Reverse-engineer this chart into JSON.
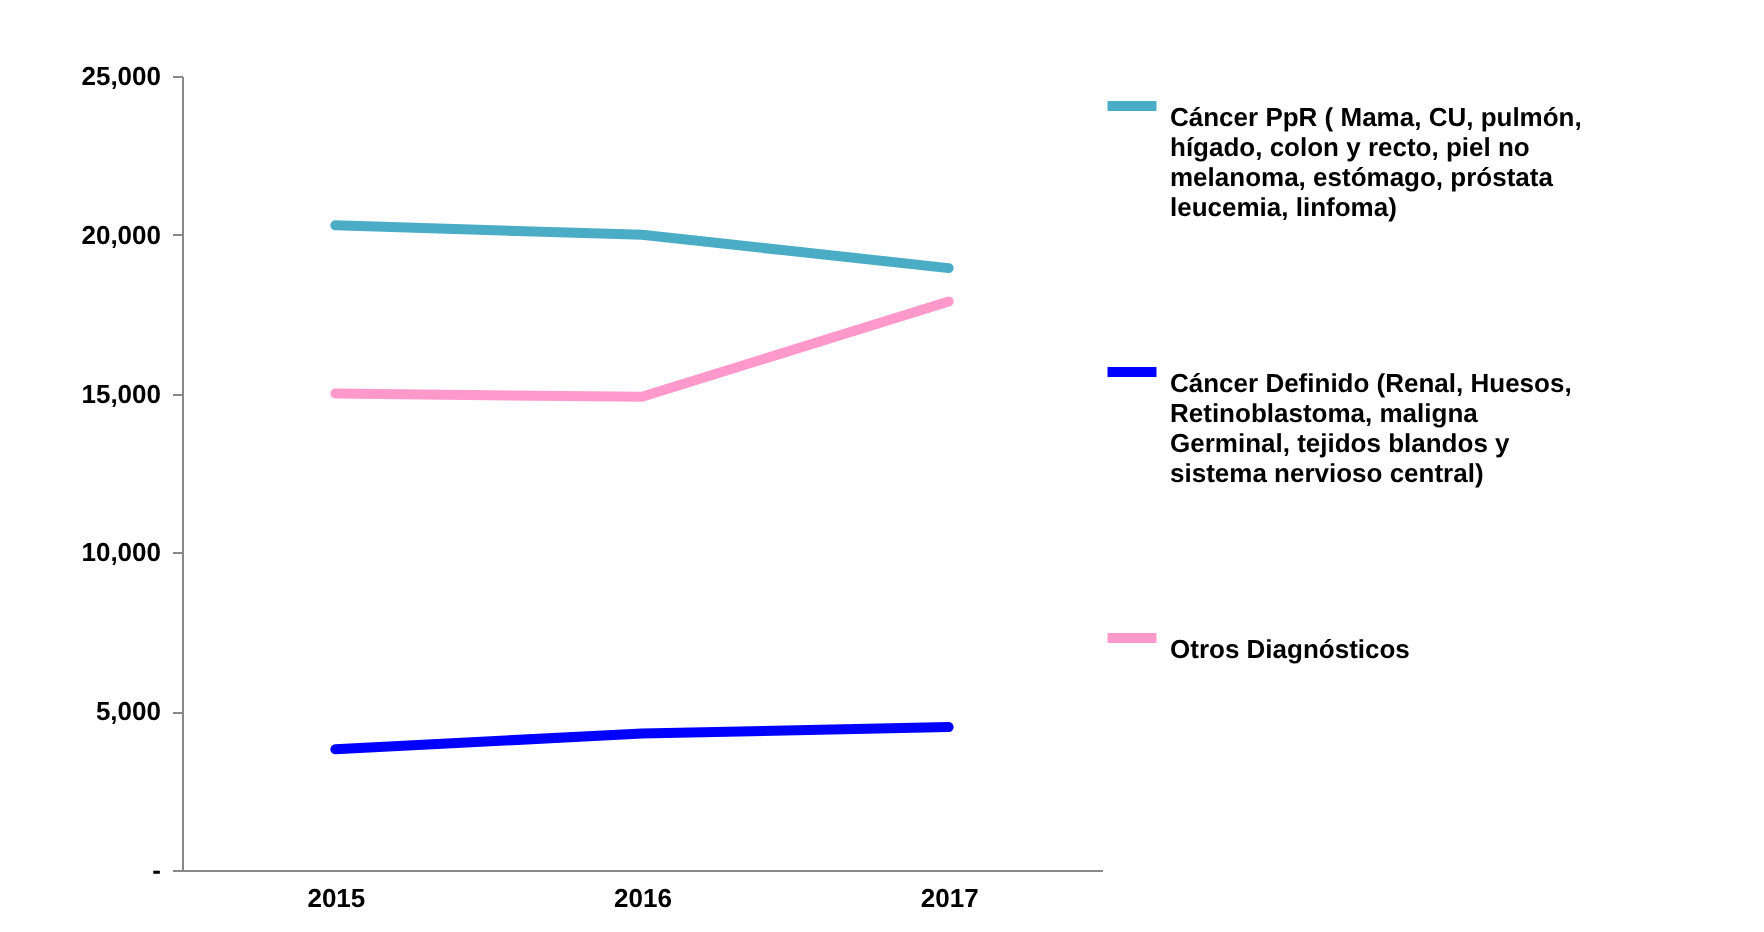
{
  "chart_data": {
    "type": "line",
    "categories": [
      "2015",
      "2016",
      "2017"
    ],
    "series": [
      {
        "name": "Cáncer PpR ( Mama, CU, pulmón, hígado, colon y recto, piel no melanoma, estómago, próstata leucemia, linfoma)",
        "color": "#4bacc6",
        "values": [
          20300,
          20000,
          18950
        ]
      },
      {
        "name": "Cáncer Definido (Renal, Huesos, Retinoblastoma, maligna Germinal, tejidos blandos y sistema nervioso central)",
        "color": "#0000ff",
        "values": [
          3800,
          4300,
          4500
        ]
      },
      {
        "name": "Otros Diagnósticos",
        "color": "#ff99cc",
        "values": [
          15000,
          14900,
          17900
        ]
      }
    ],
    "ylim": [
      0,
      25000
    ],
    "yticks": [
      {
        "value": 0,
        "label": "-"
      },
      {
        "value": 5000,
        "label": "5,000"
      },
      {
        "value": 10000,
        "label": "10,000"
      },
      {
        "value": 15000,
        "label": "15,000"
      },
      {
        "value": 20000,
        "label": "20,000"
      },
      {
        "value": 25000,
        "label": "25,000"
      }
    ],
    "grid": false,
    "legend": "right",
    "marker": "none",
    "line_style": "solid"
  }
}
